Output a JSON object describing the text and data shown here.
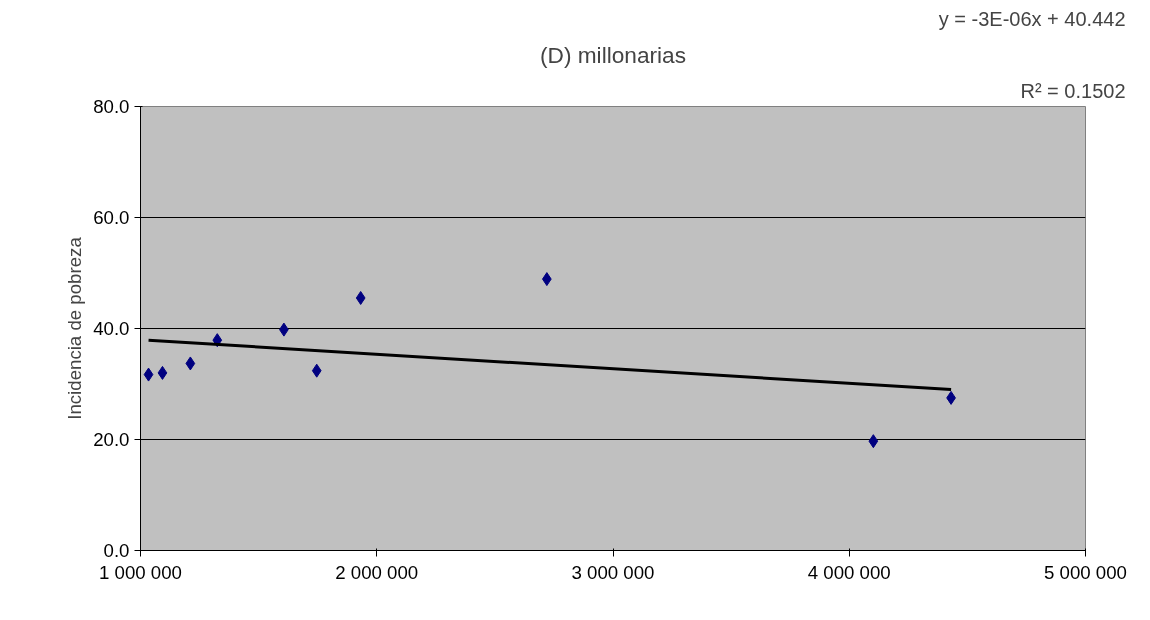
{
  "chart_data": {
    "type": "scatter",
    "title": "(D) millonarias",
    "ylabel": "Incidencia de pobreza",
    "annotations": [
      "y = -3E-06x + 40.442",
      "R² = 0.1502"
    ],
    "series": [
      {
        "color": "#000080",
        "x": [
          1034000,
          1093000,
          1211000,
          1325000,
          1607000,
          1746000,
          1932000,
          2720000,
          4102000,
          4431000
        ],
        "values": [
          31.7,
          32.0,
          33.7,
          37.9,
          39.8,
          32.4,
          45.5,
          48.9,
          19.7,
          27.5
        ]
      },
      {
        "type": "line",
        "marker": "none",
        "color": "#000000",
        "x": [
          1034000,
          4431000
        ],
        "values": [
          37.9,
          29.0
        ]
      }
    ],
    "marker": "diamond",
    "grid": "y",
    "xlim": [
      1000000,
      5000000
    ],
    "xticks": [
      {
        "value": 1000000,
        "label": "1 000 000"
      },
      {
        "value": 2000000,
        "label": "2 000 000"
      },
      {
        "value": 3000000,
        "label": "3 000 000"
      },
      {
        "value": 4000000,
        "label": "4 000 000"
      },
      {
        "value": 5000000,
        "label": "5 000 000"
      }
    ],
    "ylim": [
      0,
      80
    ],
    "yticks": [
      {
        "value": 0,
        "label": "0.0"
      },
      {
        "value": 20,
        "label": "20.0"
      },
      {
        "value": 40,
        "label": "40.0"
      },
      {
        "value": 60,
        "label": "60.0"
      },
      {
        "value": 80,
        "label": "80.0"
      }
    ]
  }
}
